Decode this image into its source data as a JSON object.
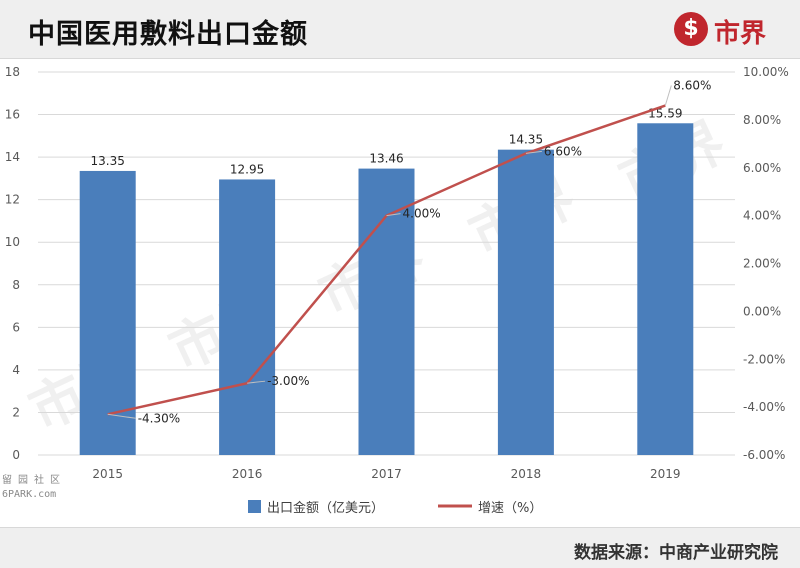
{
  "header": {
    "title": "中国医用敷料出口金额",
    "logo_mark": "$",
    "logo_text": "市界"
  },
  "watermark": "市界",
  "corner_mark": {
    "line1": "留 园 社 区",
    "line2": "6PARK.com"
  },
  "source": "数据来源：中商产业研究院",
  "colors": {
    "bar": "#4a7ebb",
    "line": "#c0504d",
    "brand": "#c0262d"
  },
  "chart_data": {
    "type": "bar+line",
    "categories": [
      "2015",
      "2016",
      "2017",
      "2018",
      "2019"
    ],
    "series": [
      {
        "name": "出口金额（亿美元）",
        "type": "bar",
        "axis": "left",
        "values": [
          13.35,
          12.95,
          13.46,
          14.35,
          15.59
        ],
        "labels": [
          "13.35",
          "12.95",
          "13.46",
          "14.35",
          "15.59"
        ]
      },
      {
        "name": "增速（%）",
        "type": "line",
        "axis": "right",
        "values": [
          -4.3,
          -3.0,
          4.0,
          6.6,
          8.6
        ],
        "labels": [
          "-4.30%",
          "-3.00%",
          "4.00%",
          "6.60%",
          "8.60%"
        ]
      }
    ],
    "y_left": {
      "min": 0,
      "max": 18,
      "ticks": [
        "0",
        "2",
        "4",
        "6",
        "8",
        "10",
        "12",
        "14",
        "16",
        "18"
      ]
    },
    "y_right": {
      "min": -6,
      "max": 10,
      "ticks": [
        "-6.00%",
        "-4.00%",
        "-2.00%",
        "0.00%",
        "2.00%",
        "4.00%",
        "6.00%",
        "8.00%",
        "10.00%"
      ]
    },
    "grid": true,
    "legend": "bottom"
  }
}
